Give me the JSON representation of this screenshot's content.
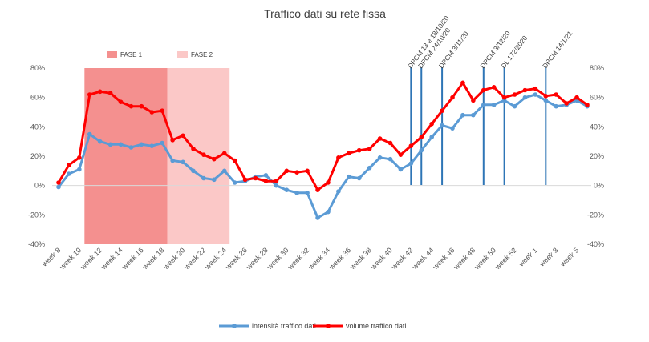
{
  "chart_data": {
    "type": "line",
    "title": "Traffico dati su rete fissa",
    "xlabel": "",
    "ylabel": "",
    "ylim": [
      -40,
      80
    ],
    "yticks": [
      "-40%",
      "-20%",
      "0%",
      "20%",
      "40%",
      "60%",
      "80%"
    ],
    "grid": false,
    "legend_position": "bottom",
    "x": [
      "week 8",
      "week 9",
      "week 10",
      "week 11",
      "week 12",
      "week 13",
      "week 14",
      "week 15",
      "week 16",
      "week 17",
      "week 18",
      "week 19",
      "week 20",
      "week 21",
      "week 22",
      "week 23",
      "week 24",
      "week 25",
      "week 26",
      "week 27",
      "week 28",
      "week 29",
      "week 30",
      "week 31",
      "week 32",
      "week 33",
      "week 34",
      "week 35",
      "week 36",
      "week 37",
      "week 38",
      "week 39",
      "week 40",
      "week 41",
      "week 42",
      "week 43",
      "week 44",
      "week 45",
      "week 46",
      "week 47",
      "week 48",
      "week 49",
      "week 50",
      "week 51",
      "week 52",
      "week 53",
      "week 1",
      "week 2",
      "week 3",
      "week 4",
      "week 5",
      "week 6"
    ],
    "xtick_labels": [
      "week 8",
      "week 10",
      "week 12",
      "week 14",
      "week 16",
      "week 18",
      "week 20",
      "week 22",
      "week 24",
      "week 26",
      "week 28",
      "week 30",
      "week 32",
      "week 34",
      "week 36",
      "week 38",
      "week 40",
      "week 42",
      "week 44",
      "week 46",
      "week 48",
      "week 50",
      "week 52",
      "week 1",
      "week 3",
      "week 5"
    ],
    "series": [
      {
        "name": "intensità traffico dati",
        "color": "#5b9bd5",
        "values": [
          -1,
          8,
          11,
          35,
          30,
          28,
          28,
          26,
          28,
          27,
          29,
          17,
          16,
          10,
          5,
          4,
          10,
          2,
          3,
          6,
          7,
          0,
          -3,
          -5,
          -5,
          -22,
          -18,
          -4,
          6,
          5,
          12,
          19,
          18,
          11,
          15,
          24,
          33,
          41,
          39,
          48,
          48,
          55,
          55,
          58,
          54,
          60,
          62,
          58,
          54,
          55,
          58,
          54
        ]
      },
      {
        "name": "volume traffico dati",
        "color": "#ff0000",
        "values": [
          2,
          14,
          19,
          62,
          64,
          63,
          57,
          54,
          54,
          50,
          51,
          31,
          34,
          25,
          21,
          18,
          22,
          17,
          4,
          5,
          3,
          3,
          10,
          9,
          10,
          -3,
          2,
          19,
          22,
          24,
          25,
          32,
          29,
          21,
          27,
          33,
          42,
          51,
          60,
          70,
          58,
          65,
          67,
          60,
          62,
          65,
          66,
          61,
          62,
          56,
          60,
          55
        ]
      }
    ],
    "phases": [
      {
        "label": "FASE 1",
        "start": "week 11",
        "end": "week 19",
        "color": "#f4908f"
      },
      {
        "label": "FASE 2",
        "start": "week 19",
        "end": "week 25",
        "color": "#fbc8c7"
      }
    ],
    "events": [
      {
        "label": "DPCM 13 e 18/10/20",
        "x": "week 42",
        "color": "#2e75b6"
      },
      {
        "label": "DPCM 24/10/20",
        "x": "week 43",
        "color": "#2e75b6"
      },
      {
        "label": "DPCM 3/11/20",
        "x": "week 45",
        "color": "#2e75b6"
      },
      {
        "label": "DPCM 3/12/20",
        "x": "week 49",
        "color": "#2e75b6"
      },
      {
        "label": "DL 172/2020",
        "x": "week 51",
        "color": "#2e75b6"
      },
      {
        "label": "DPCM 14/1/21",
        "x": "week 2",
        "color": "#2e75b6"
      }
    ]
  }
}
